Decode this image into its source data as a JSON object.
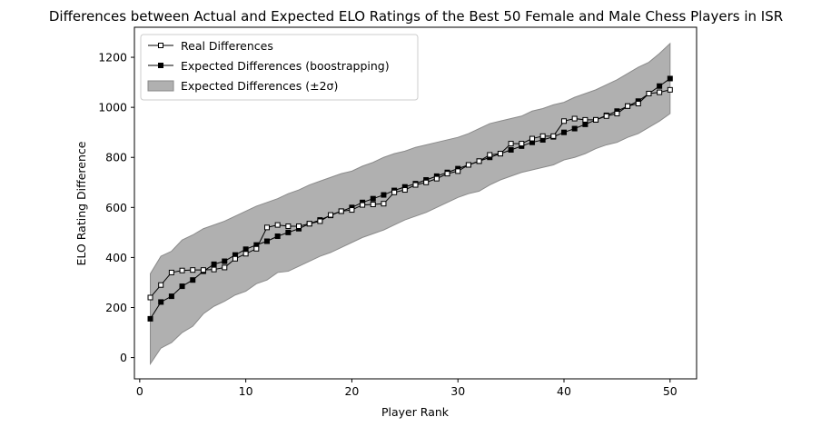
{
  "chart_data": {
    "type": "line",
    "title": "Differences between Actual and Expected ELO Ratings of the Best 50 Female and Male Chess Players in ISR",
    "xlabel": "Player Rank",
    "ylabel": "ELO Rating Difference",
    "xlim": [
      -0.5,
      52.5
    ],
    "ylim": [
      -85,
      1320
    ],
    "xticks": [
      0,
      10,
      20,
      30,
      40,
      50
    ],
    "yticks": [
      0,
      200,
      400,
      600,
      800,
      1000,
      1200
    ],
    "grid": false,
    "legend_position": "top-left",
    "x": [
      1,
      2,
      3,
      4,
      5,
      6,
      7,
      8,
      9,
      10,
      11,
      12,
      13,
      14,
      15,
      16,
      17,
      18,
      19,
      20,
      21,
      22,
      23,
      24,
      25,
      26,
      27,
      28,
      29,
      30,
      31,
      32,
      33,
      34,
      35,
      36,
      37,
      38,
      39,
      40,
      41,
      42,
      43,
      44,
      45,
      46,
      47,
      48,
      49,
      50
    ],
    "series": [
      {
        "name": "Real Differences",
        "marker": "open-square",
        "color": "#000000",
        "values": [
          240,
          290,
          340,
          348,
          350,
          350,
          352,
          360,
          395,
          415,
          435,
          520,
          530,
          525,
          525,
          535,
          545,
          570,
          585,
          590,
          610,
          612,
          615,
          660,
          670,
          690,
          700,
          715,
          735,
          745,
          770,
          785,
          810,
          815,
          855,
          855,
          875,
          885,
          885,
          945,
          955,
          950,
          950,
          965,
          975,
          1005,
          1015,
          1055,
          1060,
          1070
        ]
      },
      {
        "name": "Expected Differences (boostrapping)",
        "marker": "filled-square",
        "color": "#000000",
        "values": [
          155,
          222,
          245,
          285,
          310,
          345,
          373,
          385,
          410,
          433,
          450,
          465,
          485,
          500,
          515,
          535,
          550,
          568,
          585,
          600,
          620,
          635,
          650,
          668,
          682,
          695,
          710,
          725,
          740,
          755,
          770,
          785,
          800,
          815,
          830,
          845,
          860,
          870,
          882,
          900,
          915,
          932,
          950,
          968,
          985,
          1005,
          1025,
          1055,
          1085,
          1115
        ]
      }
    ],
    "band": {
      "name": "Expected Differences (±2σ)",
      "color": "#b0b0b0",
      "edge_color": "#8a8a8a",
      "lower": [
        -25,
        38,
        60,
        100,
        125,
        175,
        205,
        225,
        250,
        265,
        295,
        310,
        340,
        345,
        365,
        385,
        405,
        420,
        440,
        460,
        480,
        495,
        510,
        530,
        550,
        565,
        580,
        600,
        620,
        640,
        655,
        665,
        690,
        710,
        725,
        740,
        750,
        760,
        770,
        790,
        800,
        815,
        835,
        850,
        860,
        880,
        895,
        920,
        945,
        975
      ],
      "upper": [
        335,
        405,
        425,
        470,
        490,
        515,
        530,
        545,
        565,
        585,
        605,
        620,
        635,
        655,
        670,
        690,
        705,
        720,
        735,
        745,
        765,
        780,
        800,
        815,
        825,
        840,
        850,
        860,
        870,
        880,
        895,
        915,
        935,
        945,
        955,
        965,
        985,
        995,
        1010,
        1020,
        1040,
        1055,
        1070,
        1090,
        1110,
        1135,
        1160,
        1180,
        1215,
        1255
      ]
    }
  }
}
